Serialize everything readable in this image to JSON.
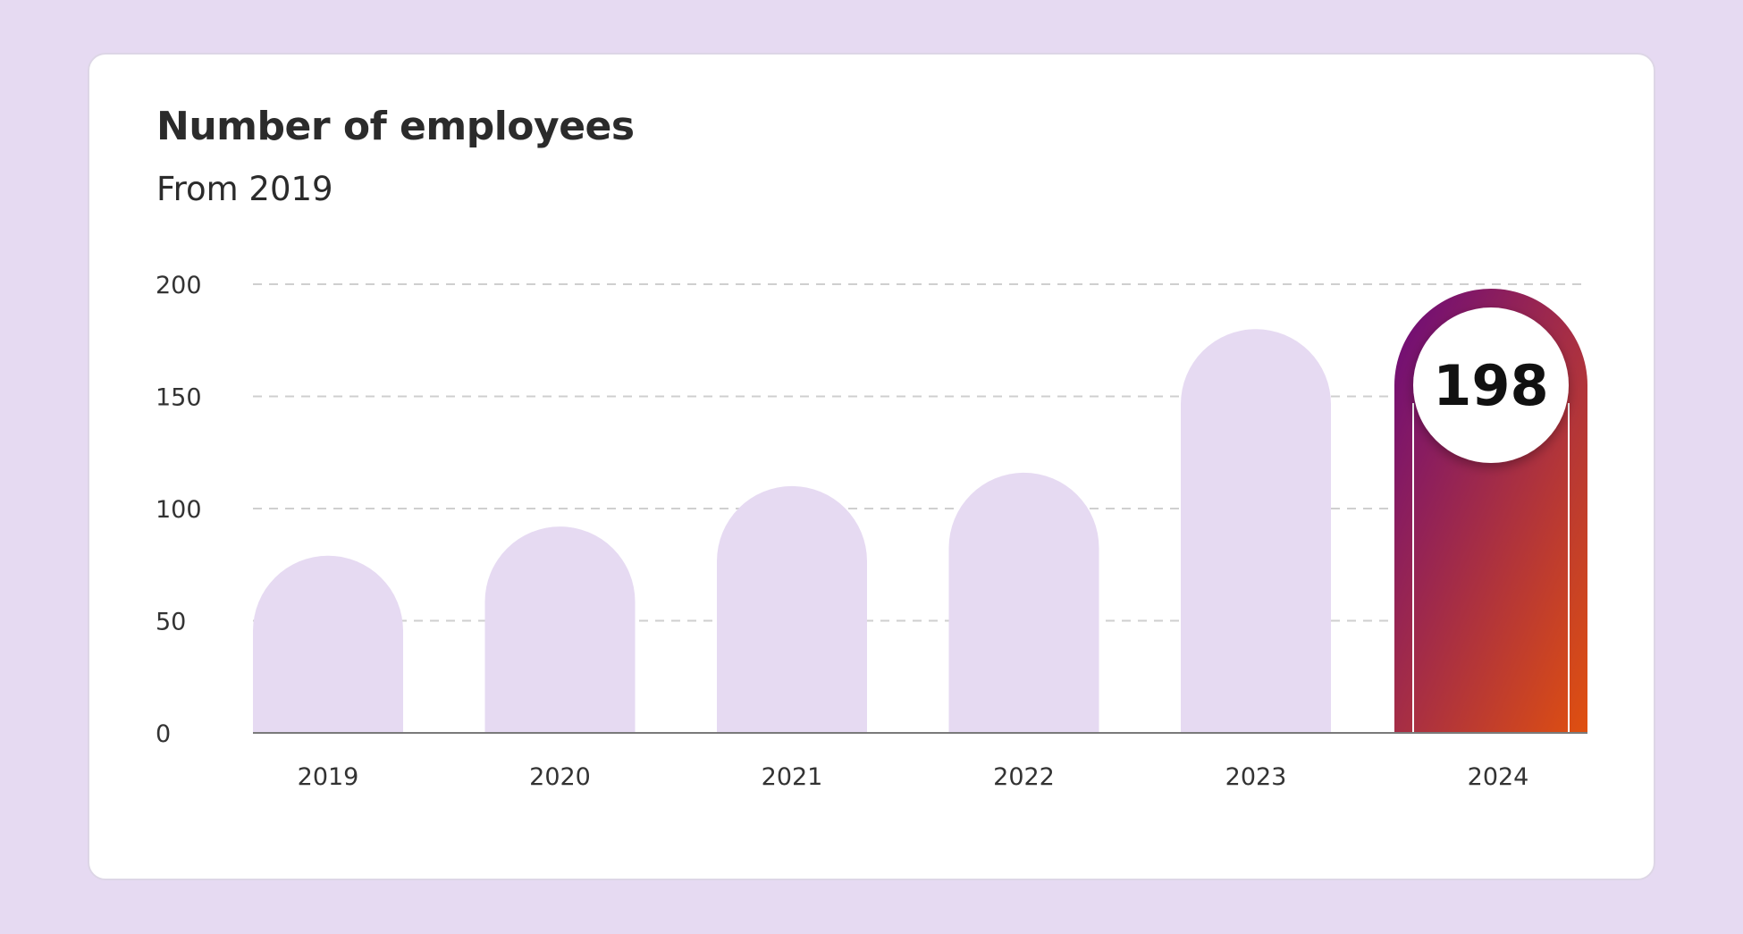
{
  "chart_data": {
    "type": "bar",
    "title": "Number of employees",
    "subtitle": "From 2019",
    "categories": [
      "2019",
      "2020",
      "2021",
      "2022",
      "2023",
      "2024"
    ],
    "values": [
      79,
      92,
      110,
      116,
      180,
      198
    ],
    "ylim": [
      0,
      200
    ],
    "yticks": [
      0,
      50,
      100,
      150,
      200
    ],
    "highlight_index": 5,
    "highlight_label": "198",
    "grid": true,
    "colors": {
      "bar": "#e6daf2",
      "highlight_gradient_start": "#6a0a7c",
      "highlight_gradient_end": "#e0500f",
      "grid": "#cfcfcf",
      "axis": "#7a7a7a"
    }
  }
}
